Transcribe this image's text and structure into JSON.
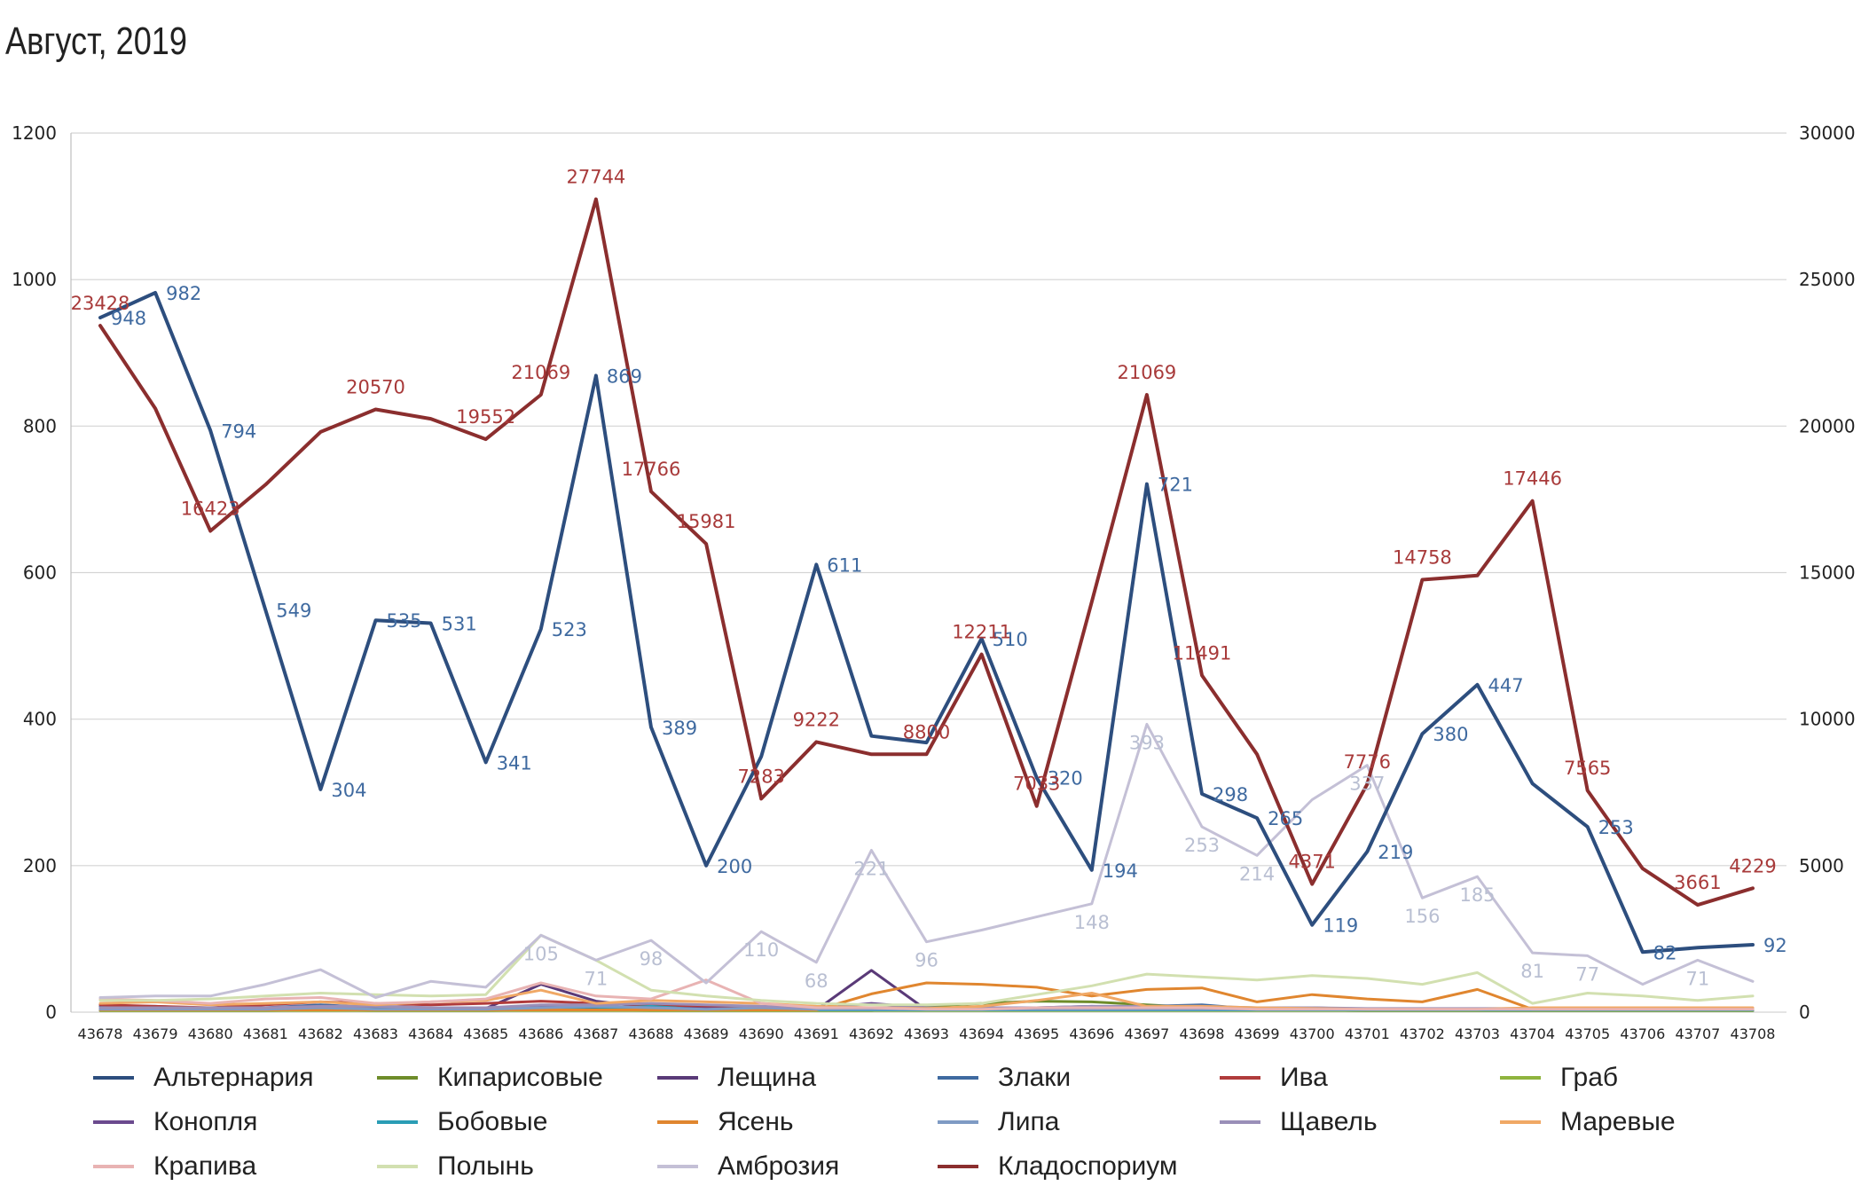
{
  "chart_data": {
    "type": "line",
    "title": "Август, 2019",
    "x": [
      43678,
      43679,
      43680,
      43681,
      43682,
      43683,
      43684,
      43685,
      43686,
      43687,
      43688,
      43689,
      43690,
      43691,
      43692,
      43693,
      43694,
      43695,
      43696,
      43697,
      43698,
      43699,
      43700,
      43701,
      43702,
      43703,
      43704,
      43705,
      43706,
      43707,
      43708
    ],
    "y_left": {
      "min": 0,
      "max": 1200,
      "ticks": [
        "0",
        "200",
        "400",
        "600",
        "800",
        "1000",
        "1200"
      ]
    },
    "y_right": {
      "min": 0,
      "max": 30000,
      "ticks": [
        "0",
        "5000",
        "10000",
        "15000",
        "20000",
        "25000",
        "30000"
      ]
    },
    "grid": true,
    "legend_position": "bottom",
    "series": [
      {
        "name": "Альтернария",
        "axis": "left",
        "color": "#2d4e7e",
        "width": 4,
        "values": [
          948,
          982,
          794,
          549,
          304,
          535,
          531,
          341,
          523,
          869,
          389,
          200,
          349,
          611,
          377,
          368,
          510,
          320,
          194,
          721,
          298,
          265,
          119,
          219,
          380,
          447,
          312,
          253,
          82,
          88,
          92
        ]
      },
      {
        "name": "Кипарисовые",
        "axis": "left",
        "color": "#6e8c2a",
        "width": 3,
        "values": [
          2,
          2,
          2,
          2,
          3,
          2,
          2,
          2,
          3,
          3,
          2,
          2,
          2,
          2,
          2,
          8,
          12,
          15,
          14,
          10,
          6,
          4,
          3,
          2,
          2,
          2,
          2,
          2,
          2,
          2,
          2
        ]
      },
      {
        "name": "Лещина",
        "axis": "left",
        "color": "#5a3a78",
        "width": 3,
        "values": [
          3,
          3,
          3,
          4,
          6,
          4,
          4,
          5,
          38,
          15,
          6,
          4,
          3,
          3,
          57,
          3,
          3,
          4,
          4,
          4,
          3,
          3,
          3,
          3,
          3,
          3,
          3,
          3,
          3,
          3,
          3
        ]
      },
      {
        "name": "Злаки",
        "axis": "left",
        "color": "#3f6aa0",
        "width": 3,
        "values": [
          8,
          8,
          5,
          6,
          10,
          6,
          5,
          5,
          6,
          6,
          6,
          5,
          5,
          4,
          5,
          4,
          4,
          5,
          6,
          8,
          10,
          4,
          3,
          2,
          2,
          2,
          2,
          2,
          2,
          2,
          2
        ]
      },
      {
        "name": "Ива",
        "axis": "left",
        "color": "#b03c3c",
        "width": 3,
        "values": [
          10,
          8,
          6,
          10,
          14,
          12,
          10,
          12,
          15,
          12,
          10,
          8,
          6,
          4,
          4,
          4,
          4,
          4,
          4,
          5,
          5,
          3,
          3,
          3,
          3,
          3,
          3,
          3,
          3,
          3,
          3
        ]
      },
      {
        "name": "Граб",
        "axis": "left",
        "color": "#8fb43e",
        "width": 3,
        "values": [
          2,
          2,
          2,
          2,
          2,
          2,
          2,
          2,
          2,
          2,
          2,
          2,
          2,
          2,
          2,
          2,
          2,
          2,
          2,
          2,
          2,
          2,
          2,
          2,
          2,
          2,
          2,
          2,
          2,
          2,
          2
        ]
      },
      {
        "name": "Конопля",
        "axis": "left",
        "color": "#6b4a8e",
        "width": 3,
        "values": [
          5,
          5,
          5,
          6,
          8,
          8,
          6,
          6,
          8,
          7,
          6,
          5,
          5,
          5,
          12,
          6,
          6,
          6,
          8,
          6,
          8,
          5,
          6,
          4,
          4,
          4,
          3,
          3,
          3,
          3,
          3
        ]
      },
      {
        "name": "Бобовые",
        "axis": "left",
        "color": "#2a9db5",
        "width": 3,
        "values": [
          3,
          3,
          3,
          3,
          4,
          3,
          3,
          3,
          4,
          4,
          8,
          3,
          3,
          3,
          3,
          3,
          3,
          3,
          3,
          3,
          3,
          3,
          3,
          3,
          3,
          3,
          3,
          3,
          3,
          3,
          3
        ]
      },
      {
        "name": "Ясень",
        "axis": "left",
        "color": "#e0862f",
        "width": 3,
        "values": [
          3,
          3,
          3,
          3,
          3,
          3,
          3,
          3,
          3,
          3,
          3,
          3,
          3,
          3,
          25,
          40,
          38,
          34,
          22,
          31,
          33,
          14,
          24,
          18,
          14,
          31,
          4,
          4,
          4,
          4,
          4
        ]
      },
      {
        "name": "Липа",
        "axis": "left",
        "color": "#7f9bc4",
        "width": 3,
        "values": [
          4,
          4,
          4,
          4,
          6,
          4,
          4,
          4,
          6,
          8,
          6,
          4,
          6,
          4,
          4,
          4,
          4,
          4,
          4,
          4,
          4,
          4,
          4,
          4,
          4,
          4,
          4,
          4,
          4,
          4,
          4
        ]
      },
      {
        "name": "Щавель",
        "axis": "left",
        "color": "#9a8fb8",
        "width": 3,
        "values": [
          6,
          6,
          6,
          6,
          8,
          8,
          6,
          6,
          10,
          10,
          12,
          10,
          8,
          6,
          6,
          6,
          6,
          6,
          8,
          8,
          8,
          6,
          6,
          5,
          5,
          5,
          5,
          5,
          5,
          5,
          5
        ]
      },
      {
        "name": "Маревые",
        "axis": "left",
        "color": "#f0a865",
        "width": 3,
        "values": [
          12,
          14,
          10,
          12,
          14,
          10,
          14,
          16,
          30,
          12,
          16,
          14,
          12,
          8,
          6,
          5,
          8,
          16,
          26,
          8,
          8,
          6,
          5,
          4,
          4,
          4,
          6,
          6,
          6,
          6,
          6
        ]
      },
      {
        "name": "Крапива",
        "axis": "left",
        "color": "#e8b3b3",
        "width": 3,
        "values": [
          18,
          16,
          12,
          18,
          20,
          12,
          14,
          18,
          40,
          22,
          18,
          44,
          12,
          6,
          6,
          4,
          4,
          6,
          6,
          6,
          6,
          4,
          4,
          4,
          4,
          4,
          4,
          4,
          4,
          4,
          4
        ]
      },
      {
        "name": "Полынь",
        "axis": "left",
        "color": "#d2e0b0",
        "width": 3,
        "values": [
          16,
          16,
          18,
          22,
          26,
          24,
          22,
          24,
          105,
          71,
          30,
          22,
          16,
          12,
          10,
          10,
          12,
          24,
          36,
          52,
          48,
          44,
          50,
          46,
          38,
          54,
          12,
          26,
          22,
          16,
          22
        ]
      },
      {
        "name": "Амброзия",
        "axis": "left",
        "color": "#c4c0d6",
        "width": 3,
        "values": [
          20,
          22,
          22,
          38,
          58,
          20,
          42,
          34,
          105,
          71,
          98,
          40,
          110,
          68,
          221,
          96,
          112,
          130,
          148,
          393,
          253,
          214,
          290,
          337,
          156,
          185,
          81,
          77,
          38,
          71,
          42
        ]
      },
      {
        "name": "Кладоспориум",
        "axis": "right",
        "color": "#8b2e2e",
        "width": 4,
        "values": [
          23428,
          20600,
          16423,
          18000,
          19800,
          20570,
          20250,
          19552,
          21069,
          27744,
          17766,
          15981,
          7283,
          9222,
          8800,
          8800,
          12211,
          7033,
          14000,
          21069,
          11491,
          8800,
          4371,
          7776,
          14758,
          14900,
          17446,
          7565,
          4900,
          3661,
          4229
        ]
      }
    ],
    "annotations": [
      {
        "series": "Альтернария",
        "axis": "left",
        "color": "#3f6aa0",
        "labels": [
          {
            "i": 0,
            "text": "948"
          },
          {
            "i": 1,
            "text": "982"
          },
          {
            "i": 2,
            "text": "794"
          },
          {
            "i": 3,
            "text": "549"
          },
          {
            "i": 4,
            "text": "304"
          },
          {
            "i": 5,
            "text": "535"
          },
          {
            "i": 6,
            "text": "531"
          },
          {
            "i": 7,
            "text": "341"
          },
          {
            "i": 8,
            "text": "523"
          },
          {
            "i": 9,
            "text": "869"
          },
          {
            "i": 10,
            "text": "389"
          },
          {
            "i": 11,
            "text": "200"
          },
          {
            "i": 13,
            "text": "611"
          },
          {
            "i": 16,
            "text": "510"
          },
          {
            "i": 17,
            "text": "320"
          },
          {
            "i": 18,
            "text": "194"
          },
          {
            "i": 19,
            "text": "721"
          },
          {
            "i": 20,
            "text": "298"
          },
          {
            "i": 21,
            "text": "265"
          },
          {
            "i": 22,
            "text": "119"
          },
          {
            "i": 23,
            "text": "219"
          },
          {
            "i": 24,
            "text": "380"
          },
          {
            "i": 25,
            "text": "447"
          },
          {
            "i": 27,
            "text": "253"
          },
          {
            "i": 28,
            "text": "82"
          },
          {
            "i": 30,
            "text": "92"
          }
        ]
      },
      {
        "series": "Кладоспориум",
        "axis": "right",
        "color": "#a83a3a",
        "labels": [
          {
            "i": 0,
            "text": "23428"
          },
          {
            "i": 2,
            "text": "16423"
          },
          {
            "i": 5,
            "text": "20570"
          },
          {
            "i": 7,
            "text": "19552"
          },
          {
            "i": 8,
            "text": "21069"
          },
          {
            "i": 9,
            "text": "27744"
          },
          {
            "i": 10,
            "text": "17766"
          },
          {
            "i": 11,
            "text": "15981"
          },
          {
            "i": 12,
            "text": "7283"
          },
          {
            "i": 13,
            "text": "9222"
          },
          {
            "i": 15,
            "text": "8800"
          },
          {
            "i": 16,
            "text": "12211"
          },
          {
            "i": 17,
            "text": "7033"
          },
          {
            "i": 19,
            "text": "21069"
          },
          {
            "i": 20,
            "text": "11491"
          },
          {
            "i": 22,
            "text": "4371"
          },
          {
            "i": 23,
            "text": "7776"
          },
          {
            "i": 24,
            "text": "14758"
          },
          {
            "i": 26,
            "text": "17446"
          },
          {
            "i": 27,
            "text": "7565"
          },
          {
            "i": 29,
            "text": "3661"
          },
          {
            "i": 30,
            "text": "4229"
          }
        ]
      },
      {
        "series": "Амброзия",
        "axis": "left",
        "color": "#b9bfd2",
        "labels": [
          {
            "i": 8,
            "text": "105"
          },
          {
            "i": 9,
            "text": "71"
          },
          {
            "i": 10,
            "text": "98"
          },
          {
            "i": 12,
            "text": "110"
          },
          {
            "i": 13,
            "text": "68"
          },
          {
            "i": 14,
            "text": "221"
          },
          {
            "i": 15,
            "text": "96"
          },
          {
            "i": 18,
            "text": "148"
          },
          {
            "i": 19,
            "text": "393"
          },
          {
            "i": 20,
            "text": "253"
          },
          {
            "i": 21,
            "text": "214"
          },
          {
            "i": 23,
            "text": "337"
          },
          {
            "i": 24,
            "text": "156"
          },
          {
            "i": 25,
            "text": "185"
          },
          {
            "i": 26,
            "text": "81"
          },
          {
            "i": 27,
            "text": "77"
          },
          {
            "i": 29,
            "text": "71"
          }
        ]
      }
    ]
  }
}
